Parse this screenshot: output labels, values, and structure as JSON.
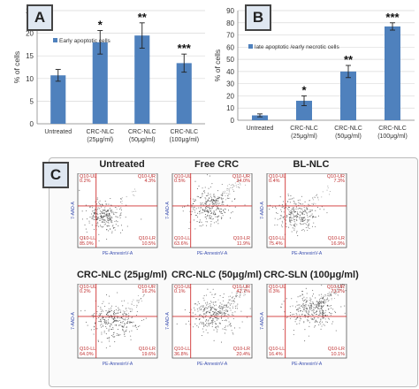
{
  "panels": {
    "a_label": "A",
    "b_label": "B",
    "c_label": "C"
  },
  "chart_data": [
    {
      "type": "bar",
      "panel": "A",
      "categories": [
        "Untreated",
        "CRC-NLC (25μg/ml)",
        "CRC-NLC (50μg/ml)",
        "CRC-NLC (100μg/ml)"
      ],
      "category_lines": [
        [
          "Untreated"
        ],
        [
          "CRC-NLC",
          "(25μg/ml)"
        ],
        [
          "CRC-NLC",
          "(50μg/ml)"
        ],
        [
          "CRC-NLC",
          "(100μg/ml)"
        ]
      ],
      "series": [
        {
          "name": "Early apoptotic cells",
          "values": [
            10.7,
            18.0,
            19.5,
            13.4
          ],
          "errors": [
            1.3,
            2.6,
            2.8,
            2.0
          ],
          "color": "#4f81bd"
        }
      ],
      "significance": [
        "",
        "*",
        "**",
        "***"
      ],
      "ylabel": "% of cells",
      "ylim": [
        0,
        25
      ],
      "yticks": [
        0,
        5,
        10,
        15,
        20,
        25
      ],
      "legend_position": "top-left"
    },
    {
      "type": "bar",
      "panel": "B",
      "categories": [
        "Untreated",
        "CRC-NLC (25μg/ml)",
        "CRC-NLC (50μg/ml)",
        "CRC-NLC (100μg/ml)"
      ],
      "category_lines": [
        [
          "Untreated"
        ],
        [
          "CRC-NLC",
          "(25μg/ml)"
        ],
        [
          "CRC-NLC",
          "(50μg/ml)"
        ],
        [
          "CRC-NLC",
          "(100μg/ml)"
        ]
      ],
      "series": [
        {
          "name": "late apoptotic /early necrotic cells",
          "values": [
            4.0,
            16.0,
            40.0,
            77.0
          ],
          "errors": [
            1.2,
            4.0,
            5.0,
            3.0
          ],
          "color": "#4f81bd"
        }
      ],
      "significance": [
        "",
        "*",
        "**",
        "***"
      ],
      "ylabel": "% of cells",
      "ylim": [
        0,
        90
      ],
      "yticks": [
        0,
        10,
        20,
        30,
        40,
        50,
        60,
        70,
        80,
        90
      ],
      "legend_position": "top-left"
    }
  ],
  "flow_cytometry": [
    {
      "title": "Untreated",
      "ul": "0.2%",
      "ur": "4.3%",
      "ll": "85.0%",
      "lr": "10.5%"
    },
    {
      "title": "Free CRC",
      "ul": "0.5%",
      "ur": "24.0%",
      "ll": "63.6%",
      "lr": "11.9%"
    },
    {
      "title": "BL-NLC",
      "ul": "0.4%",
      "ur": "7.3%",
      "ll": "75.4%",
      "lr": "16.9%"
    },
    {
      "title": "CRC-NLC (25μg/ml)",
      "ul": "0.2%",
      "ur": "16.2%",
      "ll": "64.0%",
      "lr": "19.6%"
    },
    {
      "title": "CRC-NLC (50μg/ml)",
      "ul": "0.1%",
      "ur": "42.7%",
      "ll": "36.8%",
      "lr": "20.4%"
    },
    {
      "title": "CRC-SLN (100μg/ml)",
      "ul": "0.3%",
      "ur": "73.2%",
      "ll": "16.4%",
      "lr": "10.1%"
    }
  ],
  "facs_labels": {
    "q_ul": "Q10-UL",
    "q_ur": "Q10-UR",
    "q_ll": "Q10-LL",
    "q_lr": "Q10-LR",
    "x_axis": "PE-AnnexinV-A",
    "y_axis": "7-AAD-A"
  },
  "colors": {
    "bar": "#4f81bd",
    "gate": "#d03030",
    "quadrant_text": "#c03030",
    "axis_text": "#3b4fb0"
  }
}
